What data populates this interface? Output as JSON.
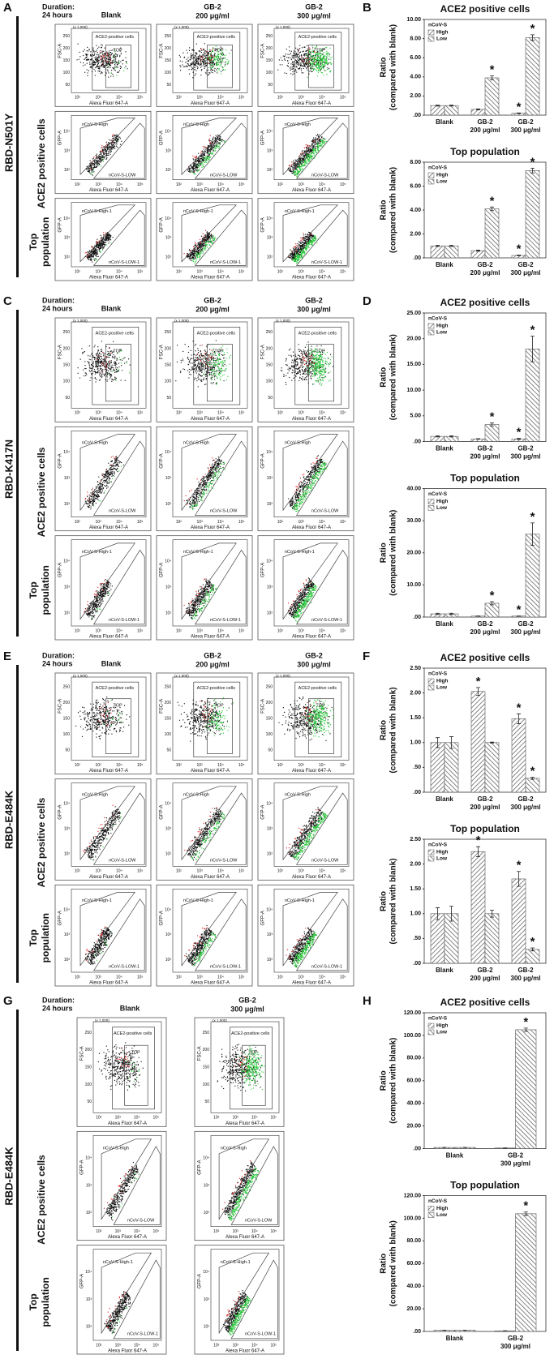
{
  "figure": {
    "duration": [
      "Duration:",
      "24 hours"
    ],
    "row_labels": {
      "ace2": "ACE2 positive cells",
      "top": [
        "Top",
        "population"
      ]
    },
    "flow": {
      "x_label": "Alexa Fluor 647-A",
      "fsc_label": "FSC-A",
      "gfp_label": "GFP-A",
      "fsc_unit": "(x 1,000)",
      "fsc_ticks": [
        "50",
        "100",
        "150",
        "200",
        "250"
      ],
      "log_ticks": [
        "10²",
        "10³",
        "10⁴",
        "10⁵"
      ],
      "gates": {
        "ace2": "ACE2-positive cells",
        "top": "TOP",
        "high": "nCoV-S-High",
        "low": "nCoV-S-LOW",
        "high1": "nCoV-S-High-1",
        "low1": "nCoV-S-LOW-1"
      }
    },
    "sections": [
      {
        "label": "A",
        "chart_label": "B",
        "variant": "RBD-N501Y",
        "columns": [
          {
            "name": "Blank"
          },
          {
            "name": "GB-2",
            "dose": "200 μg/ml"
          },
          {
            "name": "GB-2",
            "dose": "300 μg/ml"
          }
        ]
      },
      {
        "label": "C",
        "chart_label": "D",
        "variant": "RBD-K417N",
        "columns": [
          {
            "name": "Blank"
          },
          {
            "name": "GB-2",
            "dose": "200 μg/ml"
          },
          {
            "name": "GB-2",
            "dose": "300 μg/ml"
          }
        ]
      },
      {
        "label": "E",
        "chart_label": "F",
        "variant": "RBD-E484K",
        "columns": [
          {
            "name": "Blank"
          },
          {
            "name": "GB-2",
            "dose": "200 μg/ml"
          },
          {
            "name": "GB-2",
            "dose": "300 μg/ml"
          }
        ]
      },
      {
        "label": "G",
        "chart_label": "H",
        "variant": "RBD-E484K",
        "columns": [
          {
            "name": "Blank"
          },
          {
            "name": "GB-2",
            "dose": "300 μg/ml"
          }
        ]
      }
    ]
  },
  "chart_data": [
    {
      "type": "bar",
      "title": "ACE2 positive cells",
      "ylabel": [
        "Ratio",
        "(compared with blank)"
      ],
      "legend_title": "nCoV-S",
      "categories": [
        "Blank",
        "GB-2",
        "GB-2"
      ],
      "category_sublabels": [
        null,
        "200 μg/ml",
        "300 μg/ml"
      ],
      "series": [
        {
          "name": "High",
          "color": "#555555",
          "hatch": "forward",
          "values": [
            1.0,
            0.6,
            0.2
          ],
          "errors": [
            0.05,
            0.05,
            0.03
          ]
        },
        {
          "name": "Low",
          "color": "#555555",
          "hatch": "backward",
          "values": [
            1.0,
            3.9,
            8.1
          ],
          "errors": [
            0.05,
            0.2,
            0.3
          ]
        }
      ],
      "ylim": [
        0,
        10
      ],
      "yticks": [
        {
          "value": 0,
          "label": ".00"
        },
        {
          "value": 2,
          "label": "2.00"
        },
        {
          "value": 4,
          "label": "4.00"
        },
        {
          "value": 6,
          "label": "6.00"
        },
        {
          "value": 8,
          "label": "8.00"
        },
        {
          "value": 10,
          "label": "10.00"
        }
      ],
      "annotations": [
        {
          "text": "*",
          "series": 1,
          "category": 1
        },
        {
          "text": "*",
          "series": 0,
          "category": 2
        },
        {
          "text": "*",
          "series": 1,
          "category": 2
        }
      ]
    },
    {
      "type": "bar",
      "title": "Top population",
      "ylabel": [
        "Ratio",
        "(compared with blank)"
      ],
      "legend_title": "nCoV-S",
      "categories": [
        "Blank",
        "GB-2",
        "GB-2"
      ],
      "category_sublabels": [
        null,
        "200 μg/ml",
        "300 μg/ml"
      ],
      "series": [
        {
          "name": "High",
          "color": "#555555",
          "hatch": "forward",
          "values": [
            1.0,
            0.6,
            0.2
          ],
          "errors": [
            0.05,
            0.05,
            0.03
          ]
        },
        {
          "name": "Low",
          "color": "#555555",
          "hatch": "backward",
          "values": [
            1.0,
            4.1,
            7.3
          ],
          "errors": [
            0.05,
            0.15,
            0.2
          ]
        }
      ],
      "ylim": [
        0,
        8
      ],
      "yticks": [
        {
          "value": 0,
          "label": ".00"
        },
        {
          "value": 2,
          "label": "2.00"
        },
        {
          "value": 4,
          "label": "4.00"
        },
        {
          "value": 6,
          "label": "6.00"
        },
        {
          "value": 8,
          "label": "8.00"
        }
      ],
      "annotations": [
        {
          "text": "*",
          "series": 1,
          "category": 1
        },
        {
          "text": "*",
          "series": 0,
          "category": 2
        },
        {
          "text": "*",
          "series": 1,
          "category": 2
        }
      ]
    },
    {
      "type": "bar",
      "title": "ACE2 positive cells",
      "ylabel": [
        "Ratio",
        "(compared with blank)"
      ],
      "legend_title": "nCoV-S",
      "categories": [
        "Blank",
        "GB-2",
        "GB-2"
      ],
      "category_sublabels": [
        null,
        "200 μg/ml",
        "300 μg/ml"
      ],
      "series": [
        {
          "name": "High",
          "color": "#555555",
          "hatch": "forward",
          "values": [
            1.0,
            0.5,
            0.5
          ],
          "errors": [
            0.1,
            0.05,
            0.1
          ]
        },
        {
          "name": "Low",
          "color": "#555555",
          "hatch": "backward",
          "values": [
            1.0,
            3.3,
            18.0
          ],
          "errors": [
            0.1,
            0.3,
            2.5
          ]
        }
      ],
      "ylim": [
        0,
        25
      ],
      "yticks": [
        {
          "value": 0,
          "label": ".00"
        },
        {
          "value": 5,
          "label": "5.00"
        },
        {
          "value": 10,
          "label": "10.00"
        },
        {
          "value": 15,
          "label": "15.00"
        },
        {
          "value": 20,
          "label": "20.00"
        },
        {
          "value": 25,
          "label": "25.00"
        }
      ],
      "annotations": [
        {
          "text": "*",
          "series": 1,
          "category": 1
        },
        {
          "text": "*",
          "series": 0,
          "category": 2
        },
        {
          "text": "*",
          "series": 1,
          "category": 2
        }
      ]
    },
    {
      "type": "bar",
      "title": "Top population",
      "ylabel": [
        "Ratio",
        "(compared with blank)"
      ],
      "legend_title": "nCoV-S",
      "categories": [
        "Blank",
        "GB-2",
        "GB-2"
      ],
      "category_sublabels": [
        null,
        "200 μg/ml",
        "300 μg/ml"
      ],
      "series": [
        {
          "name": "High",
          "color": "#555555",
          "hatch": "forward",
          "values": [
            1.0,
            0.3,
            0.3
          ],
          "errors": [
            0.2,
            0.05,
            0.05
          ]
        },
        {
          "name": "Low",
          "color": "#555555",
          "hatch": "backward",
          "values": [
            1.0,
            4.3,
            25.8
          ],
          "errors": [
            0.2,
            0.5,
            3.5
          ]
        }
      ],
      "ylim": [
        0,
        40
      ],
      "yticks": [
        {
          "value": 0,
          "label": ".00"
        },
        {
          "value": 10,
          "label": "10.00"
        },
        {
          "value": 20,
          "label": "20.00"
        },
        {
          "value": 30,
          "label": "30.00"
        },
        {
          "value": 40,
          "label": "40.00"
        }
      ],
      "annotations": [
        {
          "text": "*",
          "series": 1,
          "category": 1
        },
        {
          "text": "*",
          "series": 0,
          "category": 2
        },
        {
          "text": "*",
          "series": 1,
          "category": 2
        }
      ]
    },
    {
      "type": "bar",
      "title": "ACE2 positive cells",
      "ylabel": [
        "Ratio",
        "(compared with blank)"
      ],
      "legend_title": "nCoV-S",
      "categories": [
        "Blank",
        "GB-2",
        "GB-2"
      ],
      "category_sublabels": [
        null,
        "200 μg/ml",
        "300 μg/ml"
      ],
      "series": [
        {
          "name": "High",
          "color": "#555555",
          "hatch": "forward",
          "values": [
            1.0,
            2.03,
            1.48
          ],
          "errors": [
            0.1,
            0.08,
            0.1
          ]
        },
        {
          "name": "Low",
          "color": "#555555",
          "hatch": "backward",
          "values": [
            1.0,
            1.0,
            0.28
          ],
          "errors": [
            0.12,
            0.01,
            0.02
          ]
        }
      ],
      "ylim": [
        0,
        2.5
      ],
      "yticks": [
        {
          "value": 0,
          "label": ".00"
        },
        {
          "value": 0.5,
          "label": ".50"
        },
        {
          "value": 1,
          "label": "1.00"
        },
        {
          "value": 1.5,
          "label": "1.50"
        },
        {
          "value": 2,
          "label": "2.00"
        },
        {
          "value": 2.5,
          "label": "2.50"
        }
      ],
      "annotations": [
        {
          "text": "*",
          "series": 0,
          "category": 1
        },
        {
          "text": "*",
          "series": 0,
          "category": 2
        },
        {
          "text": "*",
          "series": 1,
          "category": 2
        }
      ]
    },
    {
      "type": "bar",
      "title": "Top population",
      "ylabel": [
        "Ratio",
        "(compared with blank)"
      ],
      "legend_title": "nCoV-S",
      "categories": [
        "Blank",
        "GB-2",
        "GB-2"
      ],
      "category_sublabels": [
        null,
        "200 μg/ml",
        "300 μg/ml"
      ],
      "series": [
        {
          "name": "High",
          "color": "#555555",
          "hatch": "forward",
          "values": [
            1.0,
            2.25,
            1.7
          ],
          "errors": [
            0.12,
            0.1,
            0.15
          ]
        },
        {
          "name": "Low",
          "color": "#555555",
          "hatch": "backward",
          "values": [
            1.0,
            1.0,
            0.28
          ],
          "errors": [
            0.15,
            0.07,
            0.03
          ]
        }
      ],
      "ylim": [
        0,
        2.5
      ],
      "yticks": [
        {
          "value": 0,
          "label": ".00"
        },
        {
          "value": 0.5,
          "label": ".50"
        },
        {
          "value": 1,
          "label": "1.00"
        },
        {
          "value": 1.5,
          "label": "1.50"
        },
        {
          "value": 2,
          "label": "2.00"
        },
        {
          "value": 2.5,
          "label": "2.50"
        }
      ],
      "annotations": [
        {
          "text": "*",
          "series": 0,
          "category": 1
        },
        {
          "text": "*",
          "series": 0,
          "category": 2
        },
        {
          "text": "*",
          "series": 1,
          "category": 2
        }
      ]
    },
    {
      "type": "bar",
      "title": "ACE2 positive cells",
      "ylabel": [
        "Ratio",
        "(compared with blank)"
      ],
      "legend_title": "nCoV-S",
      "categories": [
        "Blank",
        "GB-2"
      ],
      "category_sublabels": [
        null,
        "300 μg/ml"
      ],
      "series": [
        {
          "name": "High",
          "color": "#555555",
          "hatch": "forward",
          "values": [
            1.0,
            0.5
          ],
          "errors": [
            0.1,
            0.1
          ]
        },
        {
          "name": "Low",
          "color": "#555555",
          "hatch": "backward",
          "values": [
            1.0,
            105
          ],
          "errors": [
            0.1,
            1.5
          ]
        }
      ],
      "ylim": [
        0,
        120
      ],
      "yticks": [
        {
          "value": 0,
          "label": ".00"
        },
        {
          "value": 20,
          "label": "20.00"
        },
        {
          "value": 40,
          "label": "40.00"
        },
        {
          "value": 60,
          "label": "60.00"
        },
        {
          "value": 80,
          "label": "80.00"
        },
        {
          "value": 100,
          "label": "100.00"
        },
        {
          "value": 120,
          "label": "120.00"
        }
      ],
      "annotations": [
        {
          "text": "*",
          "series": 1,
          "category": 1
        }
      ]
    },
    {
      "type": "bar",
      "title": "Top population",
      "ylabel": [
        "Ratio",
        "(compared with blank)"
      ],
      "legend_title": "nCoV-S",
      "categories": [
        "Blank",
        "GB-2"
      ],
      "category_sublabels": [
        null,
        "300 μg/ml"
      ],
      "series": [
        {
          "name": "High",
          "color": "#555555",
          "hatch": "forward",
          "values": [
            1.0,
            0.5
          ],
          "errors": [
            0.1,
            0.1
          ]
        },
        {
          "name": "Low",
          "color": "#555555",
          "hatch": "backward",
          "values": [
            1.0,
            104
          ],
          "errors": [
            0.1,
            1.5
          ]
        }
      ],
      "ylim": [
        0,
        120
      ],
      "yticks": [
        {
          "value": 0,
          "label": ".00"
        },
        {
          "value": 20,
          "label": "20.00"
        },
        {
          "value": 40,
          "label": "40.00"
        },
        {
          "value": 60,
          "label": "60.00"
        },
        {
          "value": 80,
          "label": "80.00"
        },
        {
          "value": 100,
          "label": "100.00"
        },
        {
          "value": 120,
          "label": "120.00"
        }
      ],
      "annotations": [
        {
          "text": "*",
          "series": 1,
          "category": 1
        }
      ]
    }
  ]
}
